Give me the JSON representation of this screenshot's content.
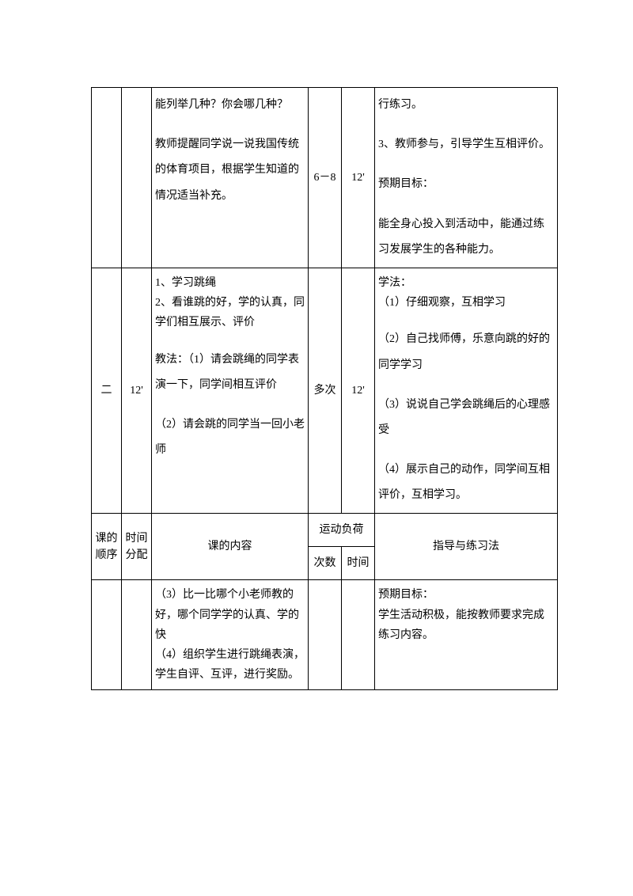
{
  "row1": {
    "content_p1": "能列举几种？你会哪几种？",
    "content_p2": "教师提醒同学说一说我国传统的体育项目，根据学生知道的情况适当补充。",
    "count": "6－8",
    "duration": "12'",
    "guide_p1": "行练习。",
    "guide_p2": "3、教师参与，引导学生互相评价。",
    "guide_p3": "预期目标：",
    "guide_p4": "能全身心投入到活动中，能通过练习发展学生的各种能力。"
  },
  "row2": {
    "seq": "二",
    "time": "12'",
    "content_p1": "1、学习跳绳",
    "content_p2": "2、看谁跳的好，学的认真，同学们相互展示、评价",
    "content_p3": "教法：（1）请会跳绳的同学表演一下，同学间相互评价",
    "content_p4": "（2）请会跳的同学当一回小老师",
    "count": "多次",
    "duration": "12'",
    "guide_p1": "学法：",
    "guide_p2": "（1）仔细观察，互相学习",
    "guide_p3": "（2）自己找师傅，乐意向跳的好的同学学习",
    "guide_p4": "（3）说说自己学会跳绳后的心理感受",
    "guide_p5": "（4）展示自己的动作，同学间互相评价，互相学习。"
  },
  "header": {
    "seq": "课的顺序",
    "time": "时间分配",
    "content": "课的内容",
    "load": "运动负荷",
    "guide": "指导与练习法",
    "sub_count": "次数",
    "sub_dur": "时间"
  },
  "row3": {
    "content_p1": "（3）比一比哪个小老师教的好，哪个同学学的认真、学的快",
    "content_p2": "（4）组织学生进行跳绳表演，学生自评、互评，进行奖励。",
    "guide_p1": " 预期目标：",
    "guide_p2": "学生活动积极，能按教师要求完成练习内容。"
  }
}
